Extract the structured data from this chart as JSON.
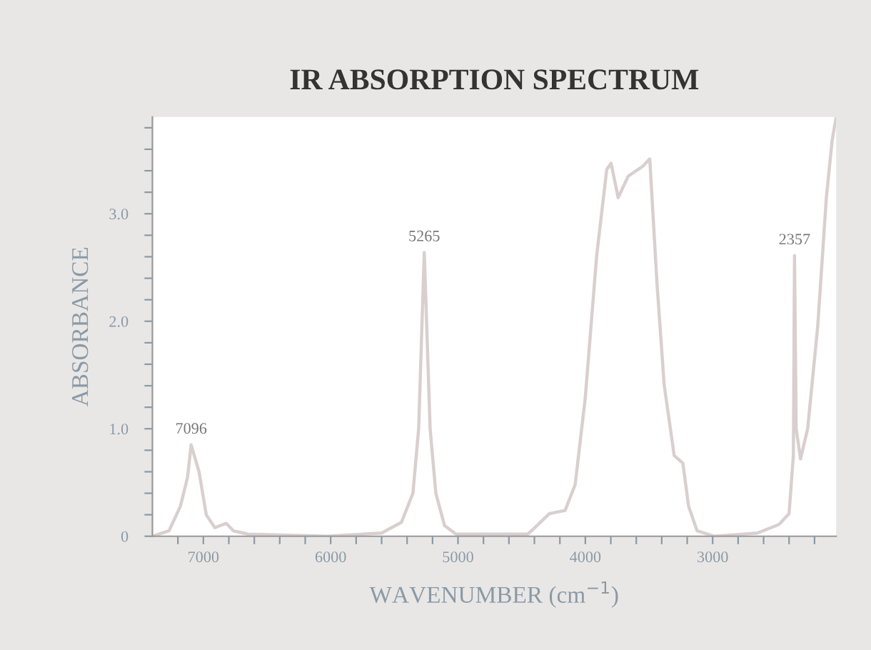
{
  "chart_data": {
    "type": "line",
    "title": "IR ABSORPTION SPECTRUM",
    "xlabel": "WAVENUMBER (cm$^{−1}$)",
    "ylabel": "ABSORBANCE",
    "series": [
      {
        "color": "#d9cfcf",
        "x": [
          7400,
          7270,
          7180,
          7124,
          7096,
          7034,
          6977,
          6910,
          6820,
          6763,
          6650,
          6030,
          5600,
          5444,
          5354,
          5309,
          5265,
          5219,
          5174,
          5106,
          5016,
          4452,
          4396,
          4283,
          4159,
          4080,
          4001,
          3911,
          3832,
          3798,
          3742,
          3663,
          3550,
          3494,
          3437,
          3381,
          3302,
          3234,
          3189,
          3122,
          2986,
          2648,
          2479,
          2400,
          2366,
          2357,
          2344,
          2310,
          2254,
          2175,
          2107,
          2062,
          2030
        ],
        "values": [
          0.0,
          0.05,
          0.28,
          0.55,
          0.85,
          0.6,
          0.2,
          0.08,
          0.12,
          0.05,
          0.02,
          0.0,
          0.03,
          0.13,
          0.4,
          1.0,
          2.64,
          1.0,
          0.4,
          0.1,
          0.02,
          0.02,
          0.08,
          0.21,
          0.24,
          0.48,
          1.28,
          2.61,
          3.41,
          3.47,
          3.15,
          3.35,
          3.44,
          3.51,
          2.35,
          1.41,
          0.75,
          0.68,
          0.28,
          0.05,
          0.0,
          0.03,
          0.11,
          0.21,
          0.75,
          2.61,
          1.0,
          0.72,
          1.0,
          1.95,
          3.15,
          3.68,
          3.9
        ]
      }
    ],
    "xlim": [
      7400,
      2030
    ],
    "ylim": [
      0,
      3.9
    ],
    "xticks": [
      {
        "value": 7200,
        "label": null
      },
      {
        "value": 7000,
        "label": "7000"
      },
      {
        "value": 6800,
        "label": null
      },
      {
        "value": 6600,
        "label": null
      },
      {
        "value": 6400,
        "label": null
      },
      {
        "value": 6200,
        "label": null
      },
      {
        "value": 6000,
        "label": "6000"
      },
      {
        "value": 5800,
        "label": null
      },
      {
        "value": 5600,
        "label": null
      },
      {
        "value": 5400,
        "label": null
      },
      {
        "value": 5200,
        "label": null
      },
      {
        "value": 5000,
        "label": "5000"
      },
      {
        "value": 4800,
        "label": null
      },
      {
        "value": 4600,
        "label": null
      },
      {
        "value": 4400,
        "label": null
      },
      {
        "value": 4200,
        "label": null
      },
      {
        "value": 4000,
        "label": "4000"
      },
      {
        "value": 3800,
        "label": null
      },
      {
        "value": 3600,
        "label": null
      },
      {
        "value": 3400,
        "label": null
      },
      {
        "value": 3200,
        "label": null
      },
      {
        "value": 3000,
        "label": "3000"
      },
      {
        "value": 2800,
        "label": null
      },
      {
        "value": 2600,
        "label": null
      },
      {
        "value": 2400,
        "label": null
      },
      {
        "value": 2200,
        "label": null
      }
    ],
    "yticks": [
      0,
      {
        "value": 0.2,
        "label": null
      },
      {
        "value": 0.4,
        "label": null
      },
      {
        "value": 0.6,
        "label": null
      },
      {
        "value": 0.8,
        "label": null
      },
      {
        "value": 1.0,
        "label": "1.0"
      },
      {
        "value": 1.2,
        "label": null
      },
      {
        "value": 1.4,
        "label": null
      },
      {
        "value": 1.6,
        "label": null
      },
      {
        "value": 1.8,
        "label": null
      },
      {
        "value": 2.0,
        "label": "2.0"
      },
      {
        "value": 2.2,
        "label": null
      },
      {
        "value": 2.4,
        "label": null
      },
      {
        "value": 2.6,
        "label": null
      },
      {
        "value": 2.8,
        "label": null
      },
      {
        "value": 3.0,
        "label": "3.0"
      },
      {
        "value": 3.2,
        "label": null
      },
      {
        "value": 3.4,
        "label": null
      },
      {
        "value": 3.6,
        "label": null
      },
      {
        "value": 3.8,
        "label": null
      }
    ],
    "annotations": [
      {
        "text": "7096",
        "x": 7096,
        "y": 0.85
      },
      {
        "text": "5265",
        "x": 5265,
        "y": 2.64
      },
      {
        "text": "2357",
        "x": 2357,
        "y": 2.61
      }
    ],
    "grid": false,
    "legend": false,
    "marker": "none",
    "line_style": "solid"
  }
}
